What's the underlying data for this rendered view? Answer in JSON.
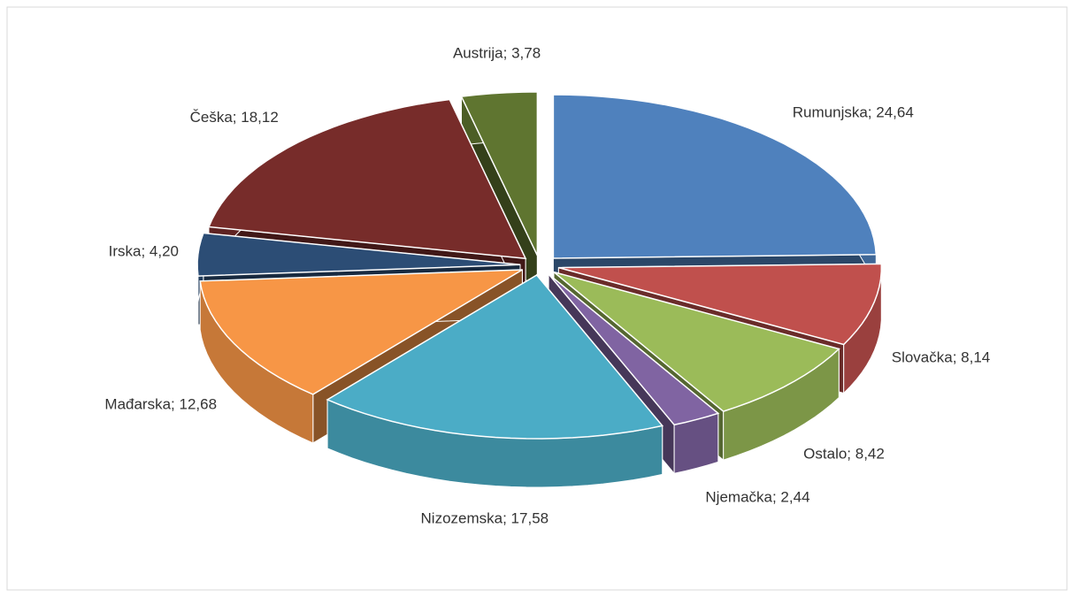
{
  "chart_data": {
    "type": "pie",
    "values": [
      24.64,
      8.14,
      8.42,
      2.44,
      17.58,
      12.68,
      4.2,
      18.12,
      3.78
    ],
    "value_labels": [
      "Rumunjska; 24,64",
      "Slovačka; 8,14",
      "Ostalo; 8,42",
      "Njemačka; 2,44",
      "Nizozemska; 17,58",
      "Mađarska; 12,68",
      "Irska; 4,20",
      "Češka; 18,12",
      "Austrija; 3,78"
    ],
    "colors": [
      "#4f81bd",
      "#c0504d",
      "#9bbb59",
      "#8064a2",
      "#4bacc6",
      "#f79646",
      "#2c4d75",
      "#772c2a",
      "#5f7530"
    ]
  }
}
